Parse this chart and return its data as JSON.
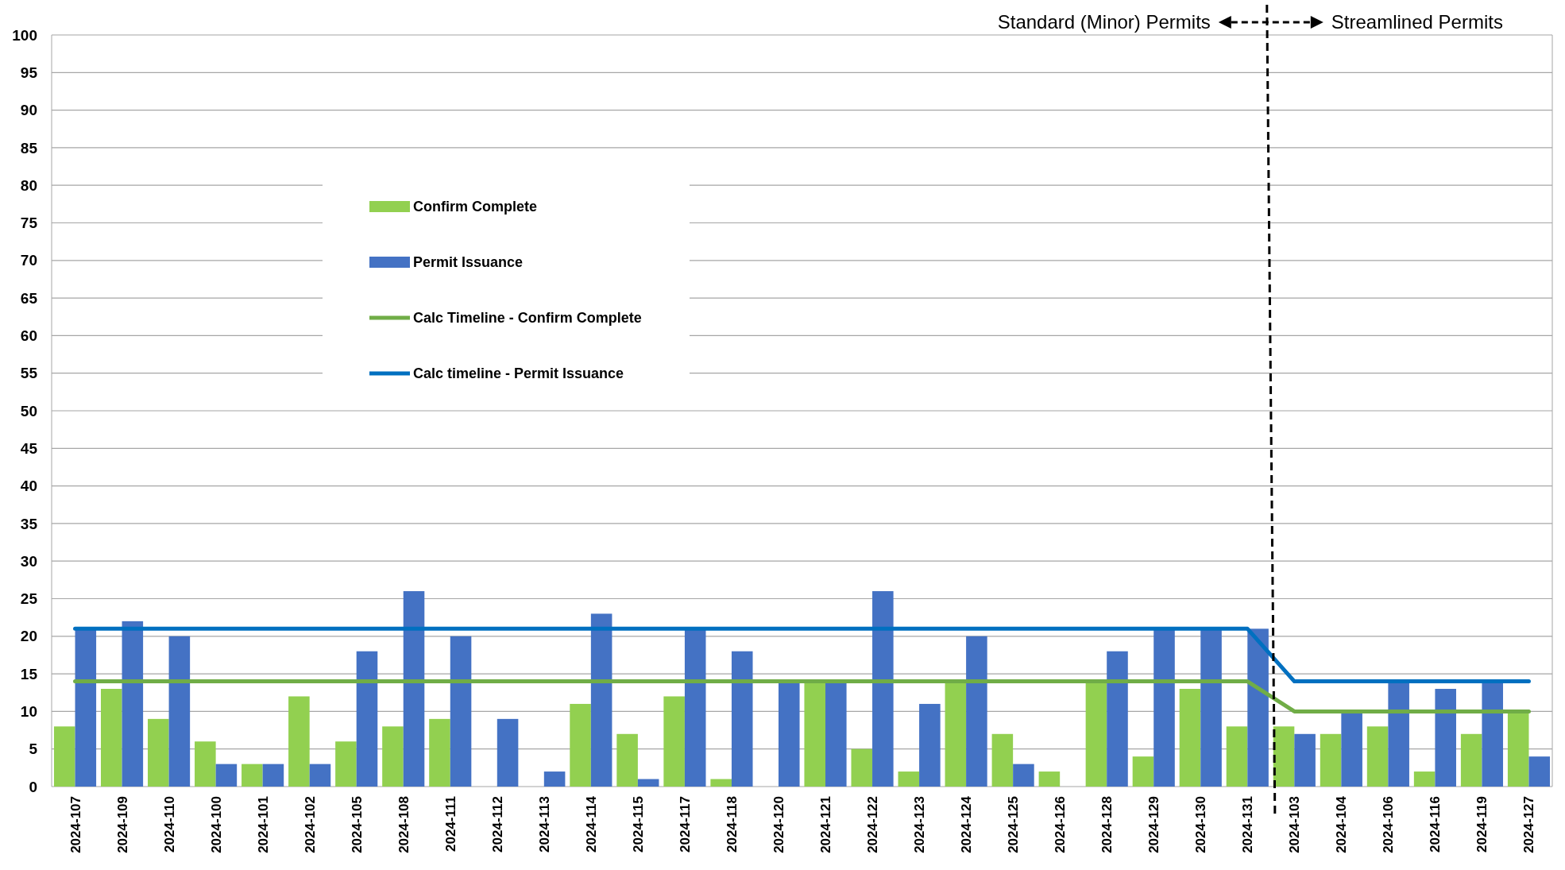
{
  "chart_data": {
    "type": "bar",
    "categories": [
      "2024-107",
      "2024-109",
      "2024-110",
      "2024-100",
      "2024-101",
      "2024-102",
      "2024-105",
      "2024-108",
      "2024-111",
      "2024-112",
      "2024-113",
      "2024-114",
      "2024-115",
      "2024-117",
      "2024-118",
      "2024-120",
      "2024-121",
      "2024-122",
      "2024-123",
      "2024-124",
      "2024-125",
      "2024-126",
      "2024-128",
      "2024-129",
      "2024-130",
      "2024-131",
      "2024-103",
      "2024-104",
      "2024-106",
      "2024-116",
      "2024-119",
      "2024-127"
    ],
    "series": [
      {
        "name": "Confirm Complete",
        "color": "#92d050",
        "values": [
          8,
          13,
          9,
          6,
          3,
          12,
          6,
          8,
          9,
          0,
          0,
          11,
          7,
          12,
          1,
          0,
          14,
          5,
          2,
          14,
          7,
          2,
          14,
          4,
          13,
          8,
          8,
          7,
          8,
          2,
          7,
          10
        ]
      },
      {
        "name": "Permit Issuance",
        "color": "#4472c4",
        "values": [
          21,
          22,
          20,
          3,
          3,
          3,
          18,
          26,
          20,
          9,
          2,
          23,
          1,
          21,
          18,
          14,
          14,
          26,
          11,
          20,
          3,
          0,
          18,
          21,
          21,
          21,
          7,
          10,
          14,
          13,
          14,
          4
        ]
      },
      {
        "name": "Calc Timeline - Confirm Complete",
        "type": "line",
        "color": "#70ad47",
        "values": [
          14,
          14,
          14,
          14,
          14,
          14,
          14,
          14,
          14,
          14,
          14,
          14,
          14,
          14,
          14,
          14,
          14,
          14,
          14,
          14,
          14,
          14,
          14,
          14,
          14,
          14,
          10,
          10,
          10,
          10,
          10,
          10
        ]
      },
      {
        "name": "Calc timeline - Permit Issuance",
        "type": "line",
        "color": "#0070c0",
        "values": [
          21,
          21,
          21,
          21,
          21,
          21,
          21,
          21,
          21,
          21,
          21,
          21,
          21,
          21,
          21,
          21,
          21,
          21,
          21,
          21,
          21,
          21,
          21,
          21,
          21,
          21,
          14,
          14,
          14,
          14,
          14,
          14
        ]
      }
    ],
    "annotations": [
      "Standard (Minor) Permits",
      "Streamlined Permits"
    ],
    "ylim": [
      0,
      100
    ],
    "yticks": [
      0,
      5,
      10,
      15,
      20,
      25,
      30,
      35,
      40,
      45,
      50,
      55,
      60,
      65,
      70,
      75,
      80,
      85,
      90,
      95,
      100
    ],
    "grid": "y",
    "legend": "top left"
  }
}
